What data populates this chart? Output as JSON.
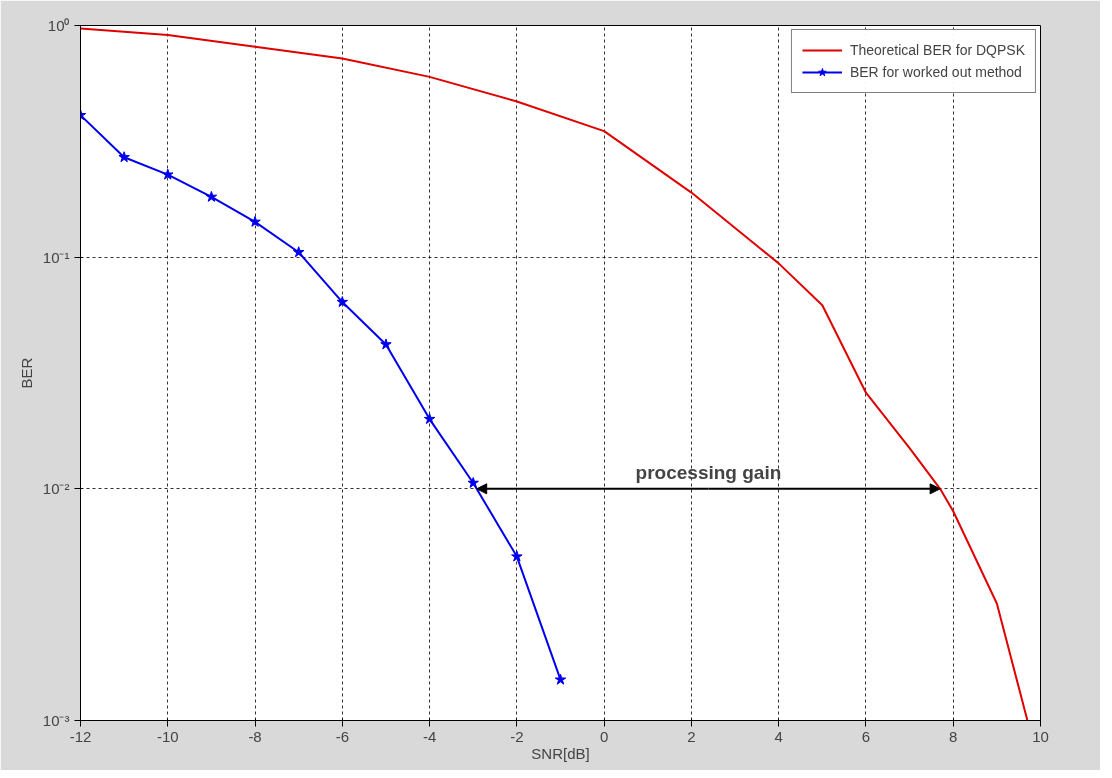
{
  "chart_data": {
    "type": "line",
    "xlabel": "SNR[dB]",
    "ylabel": "BER",
    "log": "y",
    "grid": true,
    "legend": "top right",
    "xlim": [
      -12,
      10
    ],
    "xticks": [
      -12,
      -10,
      -8,
      -6,
      -4,
      -2,
      0,
      2,
      4,
      6,
      8,
      10
    ],
    "ylim": [
      0.001,
      1
    ],
    "yticks": [
      {
        "value": 0.001,
        "label": "10⁻³"
      },
      {
        "value": 0.01,
        "label": "10⁻²"
      },
      {
        "value": 0.1,
        "label": "10⁻¹"
      },
      {
        "value": 1,
        "label": "10⁰"
      }
    ],
    "series": [
      {
        "name": "Theoretical BER for DQPSK",
        "color": "#e00000",
        "marker": "none",
        "x": [
          -12,
          -10,
          -8,
          -6,
          -4,
          -2,
          0,
          2,
          4,
          5,
          6,
          7,
          7.7,
          8,
          9,
          9.7
        ],
        "values": [
          0.97,
          0.91,
          0.81,
          0.72,
          0.6,
          0.47,
          0.35,
          0.19,
          0.094,
          0.062,
          0.026,
          0.015,
          0.01,
          0.008,
          0.0032,
          0.001
        ]
      },
      {
        "name": "BER for worked out method",
        "color": "#0000ee",
        "marker": "star",
        "x": [
          -12,
          -11,
          -10,
          -9,
          -8,
          -7,
          -6,
          -5,
          -4,
          -3,
          -2,
          -1
        ],
        "values": [
          0.41,
          0.27,
          0.227,
          0.182,
          0.142,
          0.105,
          0.064,
          0.042,
          0.02,
          0.0106,
          0.0051,
          0.0015
        ]
      }
    ],
    "annotations": [
      {
        "text": "processing gain",
        "x": 7.7,
        "y": 0.01
      }
    ]
  }
}
